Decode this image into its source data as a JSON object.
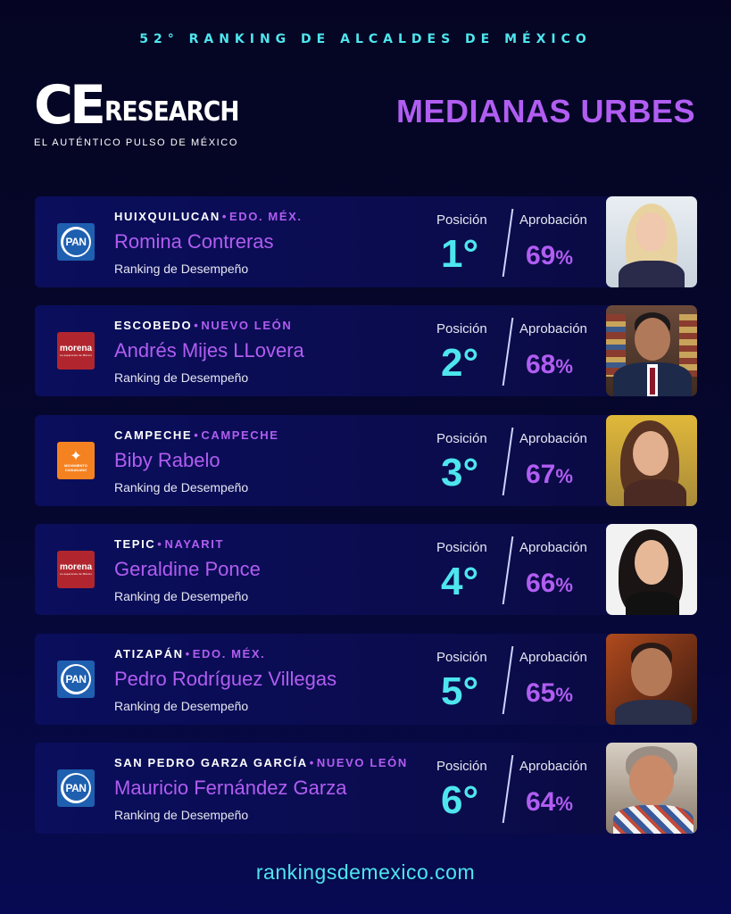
{
  "header": {
    "top_title": "52° RANKING DE ALCALDES DE MÉXICO",
    "logo_ce": "CE",
    "logo_research": "RESEARCH",
    "logo_tagline": "EL AUTÉNTICO PULSO DE MÉXICO",
    "section_title": "MEDIANAS URBES"
  },
  "labels": {
    "position": "Posición",
    "approval": "Aprobación",
    "subtitle": "Ranking de Desempeño"
  },
  "mayors": [
    {
      "city": "HUIXQUILUCAN",
      "state": "EDO. MÉX.",
      "name": "Romina Contreras",
      "party": "PAN",
      "position": "1°",
      "approval": "69",
      "pct": "%"
    },
    {
      "city": "ESCOBEDO",
      "state": "NUEVO LEÓN",
      "name": "Andrés Mijes LLovera",
      "party": "morena",
      "position": "2°",
      "approval": "68",
      "pct": "%"
    },
    {
      "city": "CAMPECHE",
      "state": "CAMPECHE",
      "name": "Biby Rabelo",
      "party": "MOVIMIENTO CIUDADANO",
      "position": "3°",
      "approval": "67",
      "pct": "%"
    },
    {
      "city": "TEPIC",
      "state": "NAYARIT",
      "name": "Geraldine Ponce",
      "party": "morena",
      "position": "4°",
      "approval": "66",
      "pct": "%"
    },
    {
      "city": "ATIZAPÁN",
      "state": "EDO. MÉX.",
      "name": "Pedro Rodríguez Villegas",
      "party": "PAN",
      "position": "5°",
      "approval": "65",
      "pct": "%"
    },
    {
      "city": "SAN PEDRO GARZA GARCÍA",
      "state": "NUEVO LEÓN",
      "name": "Mauricio Fernández Garza",
      "party": "PAN",
      "position": "6°",
      "approval": "64",
      "pct": "%"
    }
  ],
  "parties": {
    "pan": "PAN",
    "morena": "morena",
    "morena_sub": "La esperanza de México",
    "mc_line1": "MOVIMIENTO",
    "mc_line2": "CIUDADANO"
  },
  "footer": {
    "url": "rankingsdemexico.com"
  },
  "colors": {
    "accent_cyan": "#4ee6ee",
    "accent_purple": "#b15df2",
    "pan_blue": "#1e5fb0",
    "morena_red": "#b1262e",
    "mc_orange": "#f58220"
  }
}
